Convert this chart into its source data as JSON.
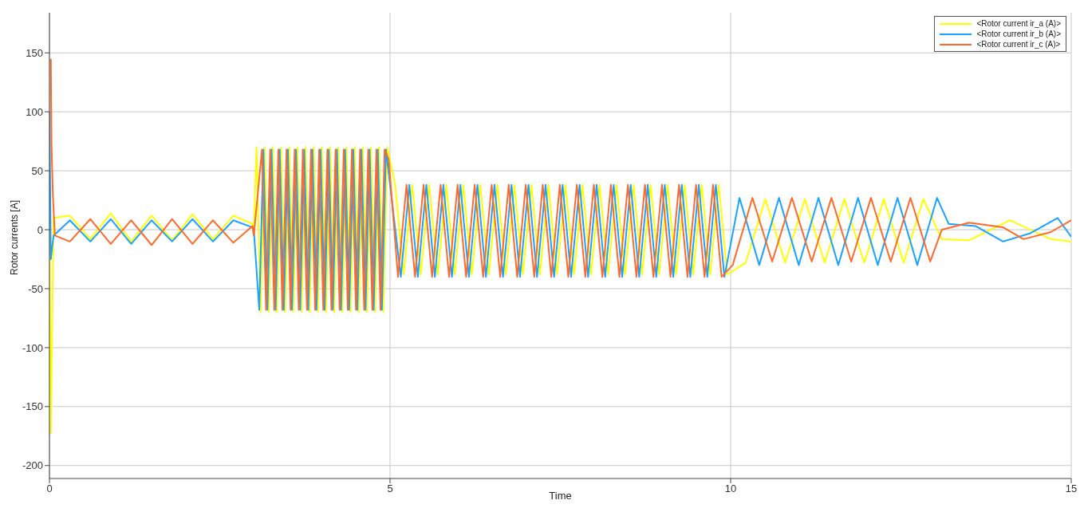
{
  "chart_data": {
    "type": "line",
    "xlabel": "Time",
    "ylabel": "Rotor currents [A]",
    "xlim": [
      0,
      15
    ],
    "xticks": [
      0,
      5,
      10,
      15
    ],
    "ylim": [
      -211,
      184
    ],
    "yticks": [
      -200,
      -150,
      -100,
      -50,
      0,
      50,
      100,
      150
    ],
    "grid": true,
    "legend": "top right",
    "marker": "none",
    "line_style": "solid",
    "series": [
      {
        "name": "<Rotor current ir_a (A)>",
        "color": "#ffff00",
        "x": [
          0,
          0.02,
          0.06,
          0.3,
          0.6,
          0.9,
          1.2,
          1.5,
          1.8,
          2.1,
          2.4,
          2.7,
          2.98,
          3.0,
          3.04,
          3.1,
          3.16,
          3.22,
          3.28,
          3.34,
          3.4,
          3.46,
          3.52,
          3.58,
          3.64,
          3.7,
          3.76,
          3.82,
          3.88,
          3.94,
          4.0,
          4.06,
          4.12,
          4.18,
          4.24,
          4.3,
          4.36,
          4.42,
          4.48,
          4.54,
          4.6,
          4.66,
          4.72,
          4.78,
          4.84,
          4.9,
          4.96,
          5.075,
          5.2,
          5.325,
          5.45,
          5.575,
          5.7,
          5.825,
          5.95,
          6.075,
          6.2,
          6.325,
          6.45,
          6.575,
          6.7,
          6.825,
          6.95,
          7.075,
          7.2,
          7.325,
          7.45,
          7.575,
          7.7,
          7.825,
          7.95,
          8.075,
          8.2,
          8.325,
          8.45,
          8.575,
          8.7,
          8.825,
          8.95,
          9.075,
          9.2,
          9.325,
          9.45,
          9.575,
          9.7,
          9.825,
          9.95,
          10.22,
          10.51,
          10.8,
          11.09,
          11.38,
          11.67,
          11.96,
          12.25,
          12.54,
          12.83,
          13.1,
          13.5,
          14.1,
          14.7,
          15
        ],
        "values": [
          0,
          -173,
          10,
          12,
          -8,
          14,
          -10,
          12,
          -9,
          13,
          -8,
          12,
          5,
          0,
          70,
          -70,
          70,
          -70,
          70,
          -70,
          70,
          -70,
          70,
          -70,
          70,
          -70,
          70,
          -70,
          70,
          -70,
          70,
          -70,
          70,
          -70,
          70,
          -70,
          70,
          -70,
          70,
          -70,
          70,
          -70,
          70,
          -70,
          70,
          -70,
          70,
          38,
          -38,
          38,
          -38,
          38,
          -38,
          38,
          -38,
          38,
          -38,
          38,
          -38,
          38,
          -38,
          38,
          -38,
          38,
          -38,
          38,
          -38,
          38,
          -38,
          38,
          -38,
          38,
          -38,
          38,
          -38,
          38,
          -38,
          38,
          -38,
          38,
          -38,
          38,
          -38,
          38,
          -38,
          38,
          -38,
          -28,
          26,
          -28,
          26,
          -28,
          26,
          -28,
          26,
          -28,
          26,
          -8,
          -9,
          8,
          -8,
          -10
        ]
      },
      {
        "name": "<Rotor current ir_b (A)>",
        "color": "#1aa3ff",
        "x": [
          0,
          0.02,
          0.06,
          0.3,
          0.6,
          0.9,
          1.2,
          1.5,
          1.8,
          2.1,
          2.4,
          2.7,
          2.98,
          3.0,
          3.08,
          3.14,
          3.2,
          3.26,
          3.32,
          3.38,
          3.44,
          3.5,
          3.56,
          3.62,
          3.68,
          3.74,
          3.8,
          3.86,
          3.92,
          3.98,
          4.04,
          4.1,
          4.16,
          4.22,
          4.28,
          4.34,
          4.4,
          4.46,
          4.52,
          4.58,
          4.64,
          4.7,
          4.76,
          4.82,
          4.88,
          4.94,
          5.158,
          5.283,
          5.408,
          5.533,
          5.658,
          5.783,
          5.908,
          6.033,
          6.158,
          6.283,
          6.408,
          6.533,
          6.658,
          6.783,
          6.908,
          7.033,
          7.158,
          7.283,
          7.408,
          7.533,
          7.658,
          7.783,
          7.908,
          8.033,
          8.158,
          8.283,
          8.408,
          8.533,
          8.658,
          8.783,
          8.908,
          9.033,
          9.158,
          9.283,
          9.408,
          9.533,
          9.658,
          9.783,
          9.908,
          10.13,
          10.42,
          10.71,
          11.0,
          11.29,
          11.58,
          11.87,
          12.16,
          12.45,
          12.74,
          13.03,
          13.2,
          13.6,
          14.0,
          14.4,
          14.8,
          15
        ],
        "values": [
          100,
          -25,
          -5,
          8,
          -10,
          9,
          -12,
          8,
          -10,
          9,
          -10,
          8,
          2,
          0,
          -68,
          68,
          -68,
          68,
          -68,
          68,
          -68,
          68,
          -68,
          68,
          -68,
          68,
          -68,
          68,
          -68,
          68,
          -68,
          68,
          -68,
          68,
          -68,
          68,
          -68,
          68,
          -68,
          68,
          -68,
          68,
          -68,
          68,
          -68,
          68,
          -40,
          38,
          -40,
          38,
          -40,
          38,
          -40,
          38,
          -40,
          38,
          -40,
          38,
          -40,
          38,
          -40,
          38,
          -40,
          38,
          -40,
          38,
          -40,
          38,
          -40,
          38,
          -40,
          38,
          -40,
          38,
          -40,
          38,
          -40,
          38,
          -40,
          38,
          -40,
          38,
          -40,
          38,
          -40,
          27,
          -30,
          27,
          -30,
          27,
          -30,
          27,
          -30,
          27,
          -30,
          27,
          5,
          3,
          -10,
          -3,
          10,
          -6
        ]
      },
      {
        "name": "<Rotor current ir_c (A)>",
        "color": "#ff6a2a",
        "x": [
          0.02,
          0.03,
          0.05,
          0.08,
          0.3,
          0.6,
          0.9,
          1.2,
          1.5,
          1.8,
          2.1,
          2.4,
          2.7,
          2.98,
          3.0,
          3.12,
          3.18,
          3.24,
          3.3,
          3.36,
          3.42,
          3.48,
          3.54,
          3.6,
          3.66,
          3.72,
          3.78,
          3.84,
          3.9,
          3.96,
          4.02,
          4.08,
          4.14,
          4.2,
          4.26,
          4.32,
          4.38,
          4.44,
          4.5,
          4.56,
          4.62,
          4.68,
          4.74,
          4.8,
          4.86,
          4.92,
          4.98,
          5.117,
          5.242,
          5.367,
          5.492,
          5.617,
          5.742,
          5.867,
          5.992,
          6.117,
          6.242,
          6.367,
          6.492,
          6.617,
          6.742,
          6.867,
          6.992,
          7.117,
          7.242,
          7.367,
          7.492,
          7.617,
          7.742,
          7.867,
          7.992,
          8.117,
          8.242,
          8.367,
          8.492,
          8.617,
          8.742,
          8.867,
          8.992,
          9.117,
          9.242,
          9.367,
          9.492,
          9.617,
          9.742,
          9.867,
          10.03,
          10.32,
          10.61,
          10.9,
          11.19,
          11.48,
          11.77,
          12.06,
          12.35,
          12.64,
          12.93,
          13.1,
          13.5,
          14.0,
          14.3,
          14.7,
          15
        ],
        "values": [
          145,
          72,
          30,
          -5,
          -10,
          9,
          -12,
          8,
          -13,
          9,
          -12,
          8,
          -11,
          3,
          -5,
          68,
          -68,
          68,
          -68,
          68,
          -68,
          68,
          -68,
          68,
          -68,
          68,
          -68,
          68,
          -68,
          68,
          -68,
          68,
          -68,
          68,
          -68,
          68,
          -68,
          68,
          -68,
          68,
          -68,
          68,
          -68,
          68,
          -68,
          68,
          60,
          -40,
          38,
          -40,
          38,
          -40,
          38,
          -40,
          38,
          -40,
          38,
          -40,
          38,
          -40,
          38,
          -40,
          38,
          -40,
          38,
          -40,
          38,
          -40,
          38,
          -40,
          38,
          -40,
          38,
          -40,
          38,
          -40,
          38,
          -40,
          38,
          -40,
          38,
          -40,
          38,
          -40,
          38,
          -40,
          -30,
          27,
          -27,
          27,
          -27,
          27,
          -27,
          27,
          -27,
          27,
          -27,
          0,
          6,
          2,
          -8,
          -2,
          8
        ]
      }
    ]
  }
}
